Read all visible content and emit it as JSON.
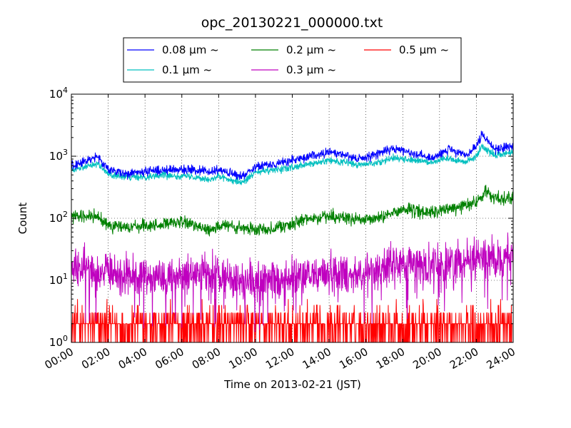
{
  "chart_data": {
    "type": "line",
    "title": "opc_20130221_000000.txt",
    "xlabel": "Time on 2013-02-21 (JST)",
    "ylabel": "Count",
    "x_ticks": [
      "00:00",
      "02:00",
      "04:00",
      "06:00",
      "08:00",
      "10:00",
      "12:00",
      "14:00",
      "16:00",
      "18:00",
      "20:00",
      "22:00",
      "24:00"
    ],
    "y_ticks": [
      {
        "base": "10",
        "exp": "0"
      },
      {
        "base": "10",
        "exp": "1"
      },
      {
        "base": "10",
        "exp": "2"
      },
      {
        "base": "10",
        "exp": "3"
      },
      {
        "base": "10",
        "exp": "4"
      }
    ],
    "xlim_hours": [
      0,
      24
    ],
    "ylim": [
      1,
      10000
    ],
    "yscale": "log",
    "grid": true,
    "legend_position": "above plot, centered",
    "legend_columns": 3,
    "series": [
      {
        "name": "0.08 μm ~",
        "color": "#0000ff",
        "noise": 0.05,
        "x": [
          0,
          0.5,
          1.2,
          1.4,
          2,
          3,
          4,
          5,
          6,
          6.5,
          7,
          7.5,
          8,
          8.5,
          9,
          9.3,
          9.7,
          10,
          11,
          12,
          13,
          14,
          14.5,
          15,
          15.5,
          16,
          17,
          17.5,
          18,
          19,
          19.5,
          20,
          20.5,
          21,
          21.5,
          22,
          22.3,
          23,
          24
        ],
        "y": [
          720,
          780,
          950,
          1000,
          600,
          520,
          560,
          600,
          620,
          600,
          580,
          550,
          600,
          550,
          480,
          470,
          600,
          700,
          750,
          850,
          1000,
          1150,
          1100,
          1050,
          900,
          950,
          1200,
          1300,
          1250,
          1050,
          900,
          1100,
          1300,
          1100,
          1050,
          1400,
          2200,
          1300,
          1450
        ]
      },
      {
        "name": "0.1 μm ~",
        "color": "#00bfbf",
        "noise": 0.04,
        "x": [
          0,
          0.5,
          1.2,
          1.4,
          2,
          3,
          4,
          5,
          6,
          6.5,
          7,
          7.5,
          8,
          8.5,
          9,
          9.3,
          9.7,
          10,
          11,
          12,
          13,
          14,
          14.5,
          15,
          15.5,
          16,
          17,
          17.5,
          18,
          19,
          19.5,
          20,
          20.5,
          21,
          21.5,
          22,
          22.3,
          23,
          24
        ],
        "y": [
          620,
          660,
          740,
          760,
          520,
          450,
          470,
          500,
          480,
          470,
          460,
          420,
          470,
          430,
          400,
          380,
          460,
          550,
          600,
          650,
          750,
          850,
          820,
          800,
          720,
          740,
          850,
          950,
          900,
          850,
          800,
          850,
          950,
          850,
          820,
          1000,
          1450,
          1050,
          1150
        ]
      },
      {
        "name": "0.2 μm ~",
        "color": "#008000",
        "noise": 0.07,
        "x": [
          0,
          1,
          1.5,
          2,
          3,
          4,
          5,
          6,
          7,
          7.5,
          8,
          8.5,
          9,
          10,
          11,
          12,
          13,
          14,
          15,
          16,
          17,
          18,
          19,
          20,
          21,
          22,
          22.5,
          23,
          24
        ],
        "y": [
          100,
          110,
          100,
          80,
          70,
          75,
          80,
          85,
          75,
          65,
          75,
          75,
          70,
          65,
          70,
          80,
          100,
          110,
          100,
          90,
          110,
          140,
          125,
          130,
          150,
          180,
          270,
          210,
          215
        ]
      },
      {
        "name": "0.3 μm ~",
        "color": "#bf00bf",
        "noise": 0.22,
        "x": [
          0,
          1,
          2,
          3,
          4,
          5,
          6,
          7,
          8,
          9,
          10,
          11,
          12,
          13,
          14,
          15,
          16,
          17,
          18,
          19,
          20,
          21,
          22,
          23,
          24
        ],
        "y": [
          15,
          16,
          13,
          12,
          12,
          12,
          12,
          13,
          12,
          10,
          9,
          10,
          11,
          12,
          13,
          13,
          13,
          17,
          18,
          18,
          17,
          20,
          23,
          24,
          26
        ]
      },
      {
        "name": "0.5 μm ~",
        "color": "#ff0000",
        "noise": 0,
        "x": [
          0,
          24
        ],
        "y": [
          2,
          2
        ]
      }
    ]
  }
}
